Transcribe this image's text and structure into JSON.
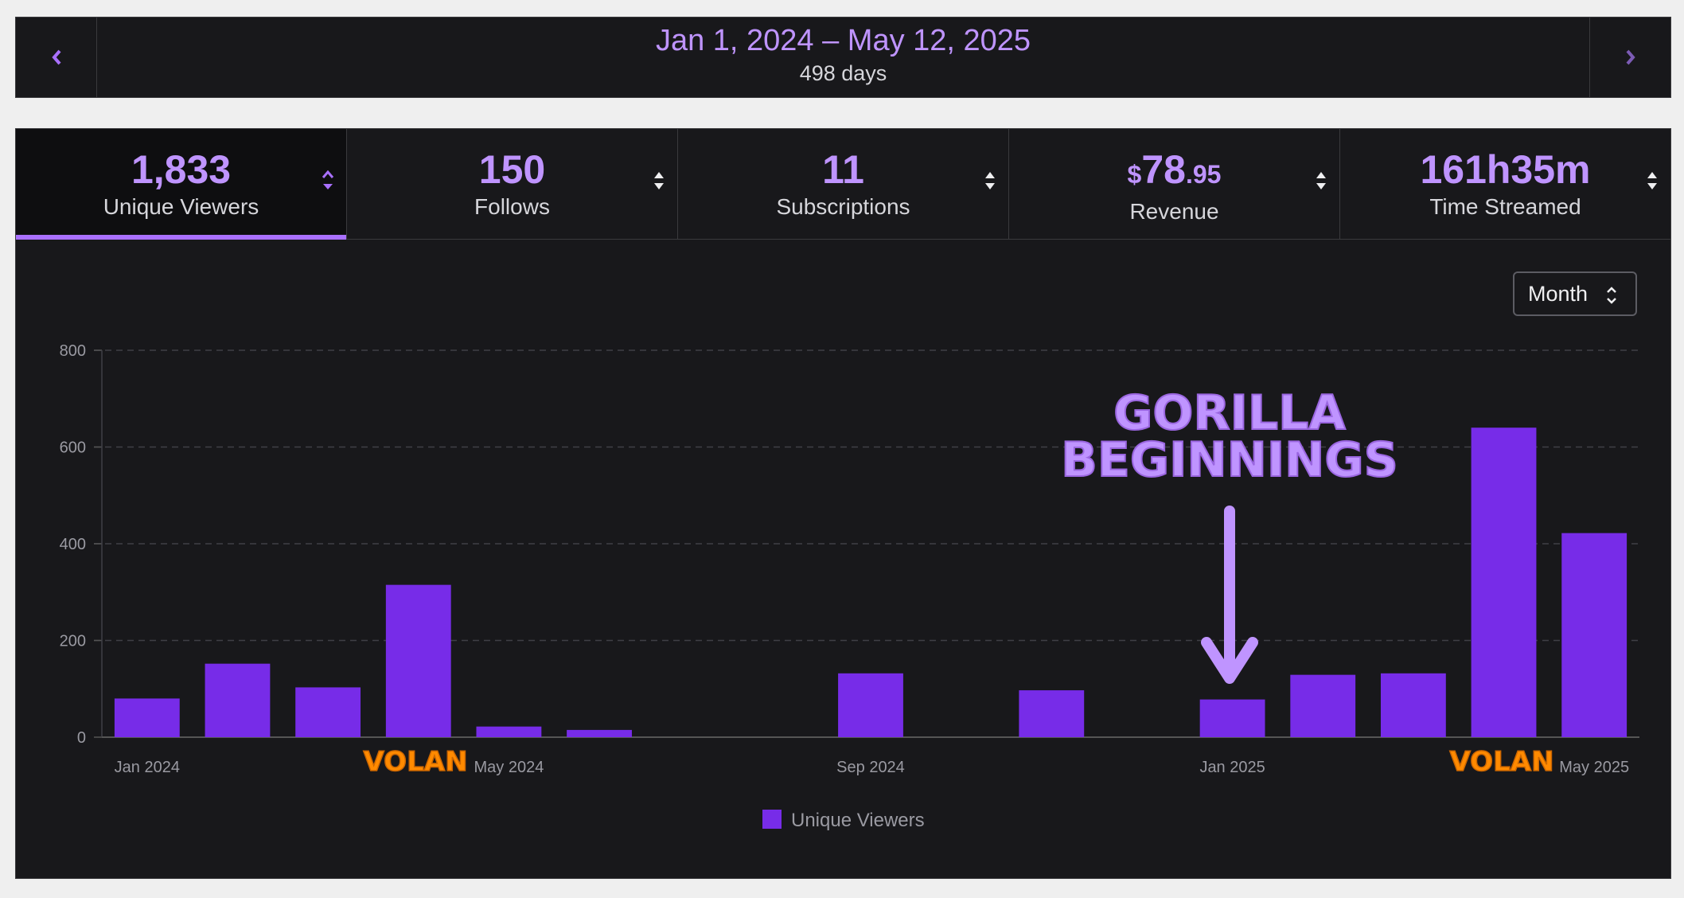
{
  "range": {
    "title": "Jan 1, 2024 – May 12, 2025",
    "days": "498 days",
    "prev_icon": "chevron-left-icon",
    "next_icon": "chevron-right-icon"
  },
  "tabs": [
    {
      "value": "1,833",
      "label": "Unique Viewers",
      "active": true
    },
    {
      "value": "150",
      "label": "Follows",
      "active": false
    },
    {
      "value": "11",
      "label": "Subscriptions",
      "active": false
    },
    {
      "value_currency": "$",
      "value_main": "78",
      "value_cents": ".95",
      "label": "Revenue",
      "active": false
    },
    {
      "value": "161h35m",
      "label": "Time Streamed",
      "active": false
    }
  ],
  "granularity": {
    "selected": "Month",
    "icon": "up-down-chevron-icon"
  },
  "colors": {
    "accent": "#a970ff",
    "bar": "#772ce8",
    "annotation": "#bf94ff",
    "highlight": "#ff8a00"
  },
  "chart_data": {
    "type": "bar",
    "categories": [
      "Jan 2024",
      "Feb 2024",
      "Mar 2024",
      "Apr 2024",
      "May 2024",
      "Jun 2024",
      "Jul 2024",
      "Aug 2024",
      "Sep 2024",
      "Oct 2024",
      "Nov 2024",
      "Dec 2024",
      "Jan 2025",
      "Feb 2025",
      "Mar 2025",
      "Apr 2025",
      "May 2025"
    ],
    "series": [
      {
        "name": "Unique Viewers",
        "values": [
          80,
          152,
          103,
          315,
          22,
          15,
          0,
          0,
          132,
          0,
          97,
          0,
          78,
          129,
          132,
          640,
          422
        ]
      }
    ],
    "tick_labels_x": [
      "Jan 2024",
      "May 2024",
      "Sep 2024",
      "Jan 2025",
      "May 2025"
    ],
    "yticks": [
      0,
      200,
      400,
      600,
      800
    ],
    "ylim": [
      0,
      800
    ],
    "grid": true,
    "legend": "bottom-center",
    "annotations": [
      {
        "text_lines": [
          "GORILLA",
          "BEGINNINGS"
        ],
        "target": "Jan 2025"
      },
      {
        "text": "VOLAN",
        "near": "Apr 2024"
      },
      {
        "text": "VOLAN",
        "near": "Apr 2025"
      }
    ]
  }
}
